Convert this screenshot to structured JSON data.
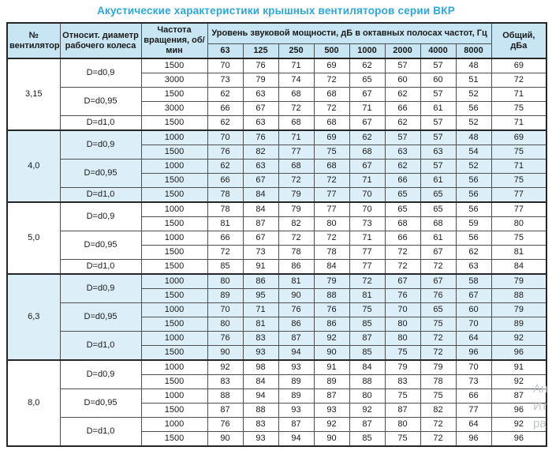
{
  "title": "Акустические характеристики крышных вентиляторов серии ВКР",
  "colors": {
    "title_accent": "#2aa7de",
    "header_bg": "#c7e5f2",
    "group_tint_bg": "#dceef8",
    "border_dark": "#262626",
    "border_inner": "#4f4f4f"
  },
  "table": {
    "headers": {
      "fan": "№ вентилятора",
      "diameter": "Относит. диаметр рабочего колеса",
      "speed": "Частота вращения, об/мин",
      "spl_group": "Уровень звуковой мощности, дБ в октавных полосах частот, Гц",
      "freqs": [
        "63",
        "125",
        "250",
        "500",
        "1000",
        "2000",
        "4000",
        "8000"
      ],
      "total": "Общий, дБа"
    },
    "groups": [
      {
        "fan": "3,15",
        "tinted": false,
        "subgroups": [
          {
            "diameter": "D=d0,9",
            "rows": [
              {
                "speed": "1500",
                "values": [
                  70,
                  76,
                  71,
                  69,
                  62,
                  57,
                  57,
                  48
                ],
                "total": 69
              },
              {
                "speed": "3000",
                "values": [
                  73,
                  79,
                  74,
                  72,
                  65,
                  60,
                  60,
                  51
                ],
                "total": 72
              }
            ]
          },
          {
            "diameter": "D=d0,95",
            "rows": [
              {
                "speed": "1500",
                "values": [
                  62,
                  63,
                  68,
                  68,
                  67,
                  62,
                  57,
                  52
                ],
                "total": 71
              },
              {
                "speed": "3000",
                "values": [
                  66,
                  67,
                  72,
                  72,
                  71,
                  66,
                  61,
                  56
                ],
                "total": 75
              }
            ]
          },
          {
            "diameter": "D=d1,0",
            "rows": [
              {
                "speed": "1500",
                "values": [
                  62,
                  63,
                  68,
                  68,
                  67,
                  62,
                  57,
                  52
                ],
                "total": 71
              }
            ]
          }
        ]
      },
      {
        "fan": "4,0",
        "tinted": true,
        "subgroups": [
          {
            "diameter": "D=d0,9",
            "rows": [
              {
                "speed": "1000",
                "values": [
                  70,
                  76,
                  71,
                  69,
                  62,
                  57,
                  57,
                  48
                ],
                "total": 69
              },
              {
                "speed": "1500",
                "values": [
                  76,
                  82,
                  77,
                  75,
                  68,
                  63,
                  63,
                  54
                ],
                "total": 75
              }
            ]
          },
          {
            "diameter": "D=d0,95",
            "rows": [
              {
                "speed": "1000",
                "values": [
                  62,
                  63,
                  68,
                  68,
                  67,
                  62,
                  57,
                  52
                ],
                "total": 71
              },
              {
                "speed": "1500",
                "values": [
                  66,
                  67,
                  72,
                  72,
                  71,
                  66,
                  61,
                  56
                ],
                "total": 75
              }
            ]
          },
          {
            "diameter": "D=d1,0",
            "rows": [
              {
                "speed": "1500",
                "values": [
                  78,
                  84,
                  79,
                  77,
                  70,
                  65,
                  65,
                  56
                ],
                "total": 77
              }
            ]
          }
        ]
      },
      {
        "fan": "5,0",
        "tinted": false,
        "subgroups": [
          {
            "diameter": "D=d0,9",
            "rows": [
              {
                "speed": "1000",
                "values": [
                  78,
                  84,
                  79,
                  77,
                  70,
                  65,
                  65,
                  56
                ],
                "total": 77
              },
              {
                "speed": "1500",
                "values": [
                  81,
                  87,
                  82,
                  80,
                  73,
                  68,
                  68,
                  59
                ],
                "total": 80
              }
            ]
          },
          {
            "diameter": "D=d0,95",
            "rows": [
              {
                "speed": "1000",
                "values": [
                  66,
                  67,
                  72,
                  72,
                  71,
                  66,
                  61,
                  56
                ],
                "total": 75
              },
              {
                "speed": "1500",
                "values": [
                  72,
                  73,
                  78,
                  78,
                  77,
                  72,
                  67,
                  62
                ],
                "total": 81
              }
            ]
          },
          {
            "diameter": "D=d1,0",
            "rows": [
              {
                "speed": "1500",
                "values": [
                  85,
                  91,
                  86,
                  84,
                  77,
                  72,
                  72,
                  63
                ],
                "total": 84
              }
            ]
          }
        ]
      },
      {
        "fan": "6,3",
        "tinted": true,
        "subgroups": [
          {
            "diameter": "D=d0,9",
            "rows": [
              {
                "speed": "1000",
                "values": [
                  80,
                  86,
                  81,
                  79,
                  72,
                  67,
                  67,
                  58
                ],
                "total": 79
              },
              {
                "speed": "1500",
                "values": [
                  89,
                  95,
                  90,
                  88,
                  81,
                  76,
                  76,
                  67
                ],
                "total": 88
              }
            ]
          },
          {
            "diameter": "D=d0,95",
            "rows": [
              {
                "speed": "1000",
                "values": [
                  70,
                  71,
                  76,
                  76,
                  75,
                  70,
                  65,
                  60
                ],
                "total": 79
              },
              {
                "speed": "1500",
                "values": [
                  80,
                  81,
                  86,
                  86,
                  85,
                  80,
                  75,
                  70
                ],
                "total": 89
              }
            ]
          },
          {
            "diameter": "D=d1,0",
            "rows": [
              {
                "speed": "1000",
                "values": [
                  76,
                  83,
                  87,
                  92,
                  87,
                  80,
                  72,
                  64
                ],
                "total": 92
              },
              {
                "speed": "1500",
                "values": [
                  90,
                  93,
                  94,
                  90,
                  85,
                  75,
                  72,
                  96
                ],
                "total": 96
              }
            ]
          }
        ]
      },
      {
        "fan": "8,0",
        "tinted": false,
        "subgroups": [
          {
            "diameter": "D=d0,9",
            "rows": [
              {
                "speed": "1000",
                "values": [
                  92,
                  98,
                  93,
                  91,
                  84,
                  79,
                  79,
                  70
                ],
                "total": 91
              },
              {
                "speed": "1500",
                "values": [
                  83,
                  84,
                  89,
                  89,
                  88,
                  83,
                  78,
                  73
                ],
                "total": 92
              }
            ]
          },
          {
            "diameter": "D=d0,95",
            "rows": [
              {
                "speed": "1000",
                "values": [
                  88,
                  94,
                  89,
                  87,
                  80,
                  75,
                  75,
                  66
                ],
                "total": 87
              },
              {
                "speed": "1500",
                "values": [
                  87,
                  88,
                  93,
                  93,
                  92,
                  87,
                  82,
                  77
                ],
                "total": 96
              }
            ]
          },
          {
            "diameter": "D=d1,0",
            "rows": [
              {
                "speed": "1000",
                "values": [
                  76,
                  83,
                  87,
                  92,
                  87,
                  80,
                  72,
                  64
                ],
                "total": 92
              },
              {
                "speed": "1500",
                "values": [
                  90,
                  93,
                  94,
                  90,
                  85,
                  75,
                  72,
                  96
                ],
                "total": 96
              }
            ]
          }
        ]
      }
    ]
  },
  "watermark": {
    "fragments": [
      "Ан",
      "Ит",
      "ра"
    ]
  }
}
